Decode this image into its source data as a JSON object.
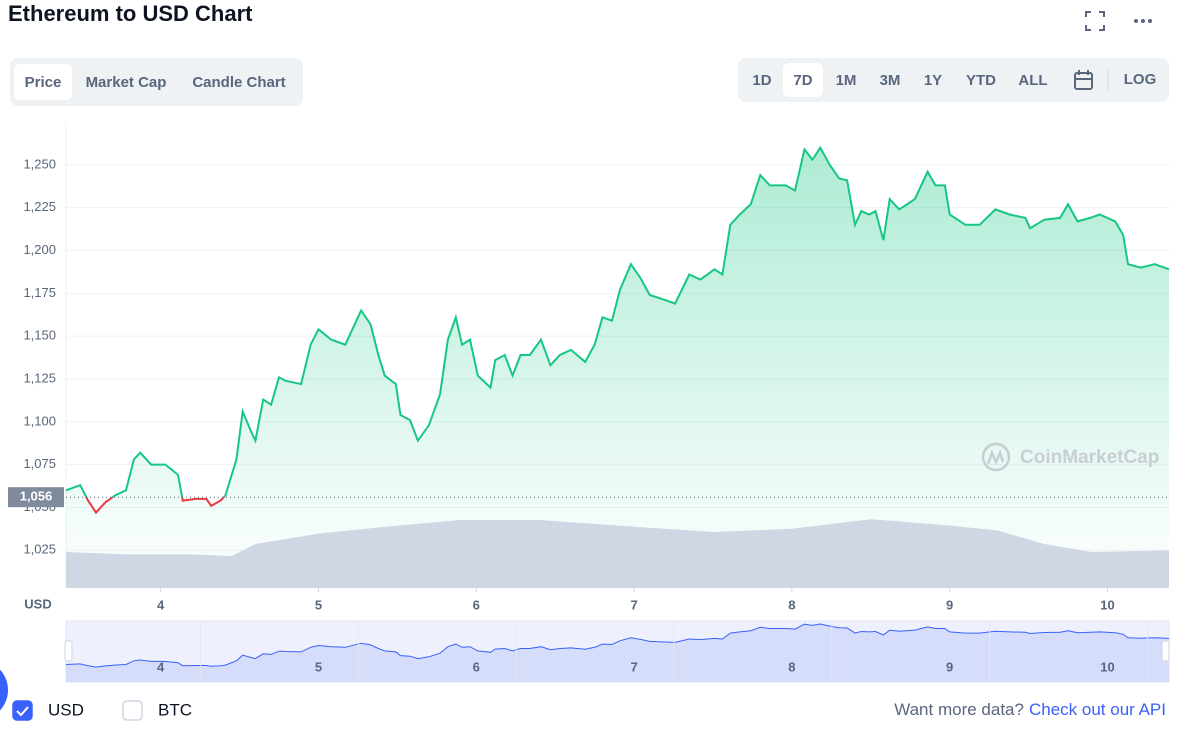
{
  "chart_data": {
    "type": "line",
    "title": "Ethereum to USD Chart",
    "ylabel": "USD",
    "x": [
      3.4,
      3.49,
      3.54,
      3.59,
      3.65,
      3.71,
      3.78,
      3.83,
      3.87,
      3.94,
      4.03,
      4.11,
      4.14,
      4.22,
      4.29,
      4.32,
      4.38,
      4.41,
      4.48,
      4.52,
      4.57,
      4.6,
      4.65,
      4.7,
      4.75,
      4.79,
      4.89,
      4.95,
      5.0,
      5.08,
      5.17,
      5.27,
      5.33,
      5.38,
      5.42,
      5.49,
      5.52,
      5.58,
      5.63,
      5.7,
      5.77,
      5.82,
      5.87,
      5.91,
      5.96,
      6.01,
      6.09,
      6.12,
      6.18,
      6.23,
      6.28,
      6.34,
      6.41,
      6.47,
      6.53,
      6.6,
      6.69,
      6.75,
      6.8,
      6.86,
      6.91,
      6.98,
      7.04,
      7.1,
      7.2,
      7.26,
      7.35,
      7.42,
      7.51,
      7.56,
      7.61,
      7.67,
      7.74,
      7.8,
      7.86,
      7.96,
      8.02,
      8.08,
      8.13,
      8.18,
      8.24,
      8.3,
      8.35,
      8.4,
      8.44,
      8.49,
      8.53,
      8.58,
      8.62,
      8.68,
      8.78,
      8.86,
      8.91,
      8.97,
      9.0,
      9.1,
      9.19,
      9.29,
      9.38,
      9.48,
      9.51,
      9.6,
      9.7,
      9.75,
      9.81,
      9.89,
      9.95,
      10.05,
      10.1,
      10.13,
      10.21,
      10.3,
      10.39
    ],
    "values": [
      1060,
      1063,
      1054,
      1047,
      1053,
      1057,
      1060,
      1078,
      1082,
      1075,
      1075,
      1069,
      1054,
      1055,
      1055,
      1051,
      1054,
      1057,
      1078,
      1106,
      1095,
      1089,
      1113,
      1110,
      1126,
      1124,
      1122,
      1145,
      1154,
      1148,
      1145,
      1165,
      1157,
      1139,
      1127,
      1122,
      1104,
      1101,
      1089,
      1098,
      1116,
      1148,
      1161,
      1145,
      1148,
      1127,
      1120,
      1136,
      1139,
      1127,
      1139,
      1139,
      1148,
      1133,
      1139,
      1142,
      1135,
      1145,
      1161,
      1159,
      1177,
      1192,
      1184,
      1174,
      1171,
      1169,
      1186,
      1183,
      1189,
      1186,
      1215,
      1221,
      1227,
      1244,
      1238,
      1238,
      1235,
      1259,
      1253,
      1260,
      1250,
      1242,
      1241,
      1215,
      1223,
      1221,
      1223,
      1206,
      1230,
      1224,
      1230,
      1246,
      1238,
      1238,
      1221,
      1215,
      1215,
      1224,
      1221,
      1219,
      1213,
      1218,
      1219,
      1227,
      1217,
      1219,
      1221,
      1217,
      1209,
      1192,
      1190,
      1192,
      1189
    ],
    "color": "#16c784",
    "down_color": "#ea3943",
    "xlim": [
      3.4,
      10.39
    ],
    "xticks": [
      4,
      5,
      6,
      7,
      8,
      9,
      10
    ],
    "ylim": [
      1003,
      1275
    ],
    "yticks": [
      {
        "value": 1025,
        "label": "1,025"
      },
      {
        "value": 1050,
        "label": "1,050"
      },
      {
        "value": 1075,
        "label": "1,075"
      },
      {
        "value": 1100,
        "label": "1,100"
      },
      {
        "value": 1125,
        "label": "1,125"
      },
      {
        "value": 1150,
        "label": "1,150"
      },
      {
        "value": 1175,
        "label": "1,175"
      },
      {
        "value": 1200,
        "label": "1,200"
      },
      {
        "value": 1225,
        "label": "1,225"
      },
      {
        "value": 1250,
        "label": "1,250"
      }
    ],
    "grid": true,
    "reference": {
      "value": 1056,
      "label": "1,056"
    },
    "volume": {
      "x": [
        3.4,
        3.8,
        4.2,
        4.45,
        4.6,
        5.0,
        5.5,
        5.9,
        6.4,
        6.9,
        7.5,
        8.0,
        8.5,
        9.0,
        9.3,
        9.6,
        9.9,
        10.39
      ],
      "values": [
        45,
        42,
        42,
        40,
        55,
        68,
        78,
        85,
        85,
        78,
        70,
        74,
        86,
        78,
        72,
        55,
        45,
        47
      ],
      "vlim": [
        0,
        100
      ],
      "color": "#cfd6e4"
    }
  },
  "ui": {
    "tabs": [
      "Price",
      "Market Cap",
      "Candle Chart"
    ],
    "selected_tab": 0,
    "ranges": [
      "1D",
      "7D",
      "1M",
      "3M",
      "1Y",
      "YTD",
      "ALL"
    ],
    "selected_range": 1,
    "log": "LOG",
    "watermark": "CoinMarketCap",
    "currencies": [
      {
        "label": "USD",
        "checked": true
      },
      {
        "label": "BTC",
        "checked": false
      }
    ],
    "promo": "Want more data?",
    "promo_link": "Check out our API"
  }
}
